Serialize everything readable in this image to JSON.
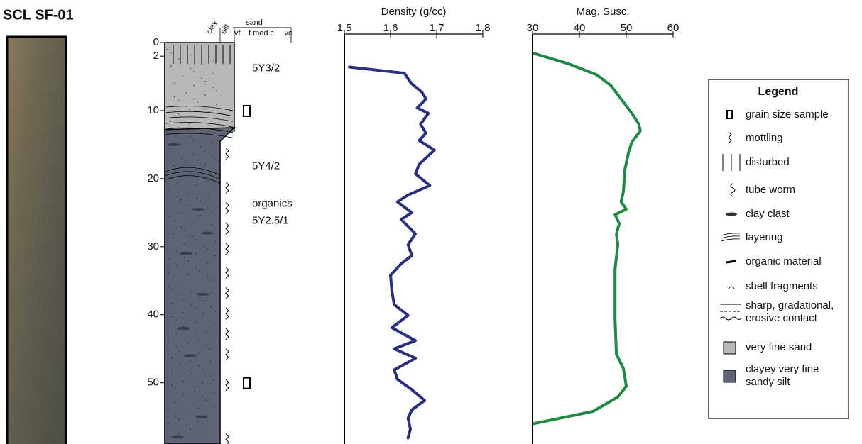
{
  "title": "SCL SF-01",
  "log": {
    "yticks": [
      0,
      2,
      10,
      20,
      30,
      40,
      50
    ],
    "header": {
      "clay": "clay",
      "silt": "silt",
      "sand": "sand",
      "classes": [
        "vf",
        "f med c",
        "vc"
      ]
    },
    "units": [
      "5Y3/2",
      "5Y4/2",
      "organics",
      "5Y2.5/1"
    ]
  },
  "chart_data": [
    {
      "type": "line",
      "title": "Density (g/cc)",
      "ylim": [
        1.5,
        1.8
      ],
      "yticks": [
        1.5,
        1.6,
        1.7,
        1.8
      ],
      "xlim": [
        0,
        59
      ],
      "x": [
        3.6,
        4.5,
        6.0,
        7.3,
        8.3,
        9.6,
        10.4,
        12.0,
        13.3,
        14.4,
        15.8,
        17.9,
        19.3,
        21.0,
        22.4,
        23.4,
        25.0,
        26.0,
        28.1,
        29.7,
        31.3,
        32.5,
        34.2,
        36.5,
        38.5,
        40.1,
        41.9,
        43.8,
        45.0,
        46.4,
        48.1,
        49.5,
        51.0,
        52.6,
        54.0,
        55.2,
        56.8,
        58.1
      ],
      "series": [
        {
          "color": "#2b2f7e",
          "values": [
            1.511,
            1.63,
            1.645,
            1.668,
            1.677,
            1.658,
            1.682,
            1.665,
            1.677,
            1.662,
            1.695,
            1.662,
            1.654,
            1.685,
            1.638,
            1.615,
            1.646,
            1.623,
            1.654,
            1.638,
            1.646,
            1.623,
            1.6,
            1.603,
            1.608,
            1.638,
            1.603,
            1.654,
            1.608,
            1.654,
            1.608,
            1.615,
            1.646,
            1.674,
            1.646,
            1.638,
            1.643,
            1.638
          ]
        }
      ]
    },
    {
      "type": "line",
      "title": "Mag. Susc.",
      "ylim": [
        30,
        60
      ],
      "yticks": [
        30,
        40,
        50,
        60
      ],
      "xlim": [
        0,
        59
      ],
      "x": [
        1.6,
        3.1,
        4.7,
        6.3,
        8.3,
        10.4,
        12.0,
        13.0,
        14.6,
        16.1,
        18.7,
        21.9,
        23.4,
        24.5,
        25.3,
        26.6,
        28.1,
        29.7,
        33.3,
        40.6,
        45.8,
        47.9,
        50.5,
        52.1,
        54.2,
        56.0
      ],
      "series": [
        {
          "color": "#1e8a44",
          "values": [
            30.3,
            37.6,
            43.6,
            46.7,
            48.9,
            51.2,
            52.7,
            53.0,
            51.2,
            50.5,
            49.7,
            49.4,
            48.9,
            50.0,
            47.6,
            48.5,
            47.9,
            48.2,
            47.6,
            47.6,
            47.9,
            49.4,
            50.0,
            48.2,
            42.9,
            30.3
          ]
        }
      ]
    }
  ],
  "legend": {
    "title": "Legend",
    "items": [
      [
        "grain size sample"
      ],
      [
        "mottling"
      ],
      [
        "disturbed"
      ],
      [
        "tube worm"
      ],
      [
        "clay clast"
      ],
      [
        "layering"
      ],
      [
        "organic material"
      ],
      [
        "shell fragments"
      ],
      [
        "sharp, gradational,",
        "erosive contact"
      ],
      [
        "very fine sand"
      ],
      [
        "clayey very fine",
        "sandy silt"
      ]
    ]
  }
}
